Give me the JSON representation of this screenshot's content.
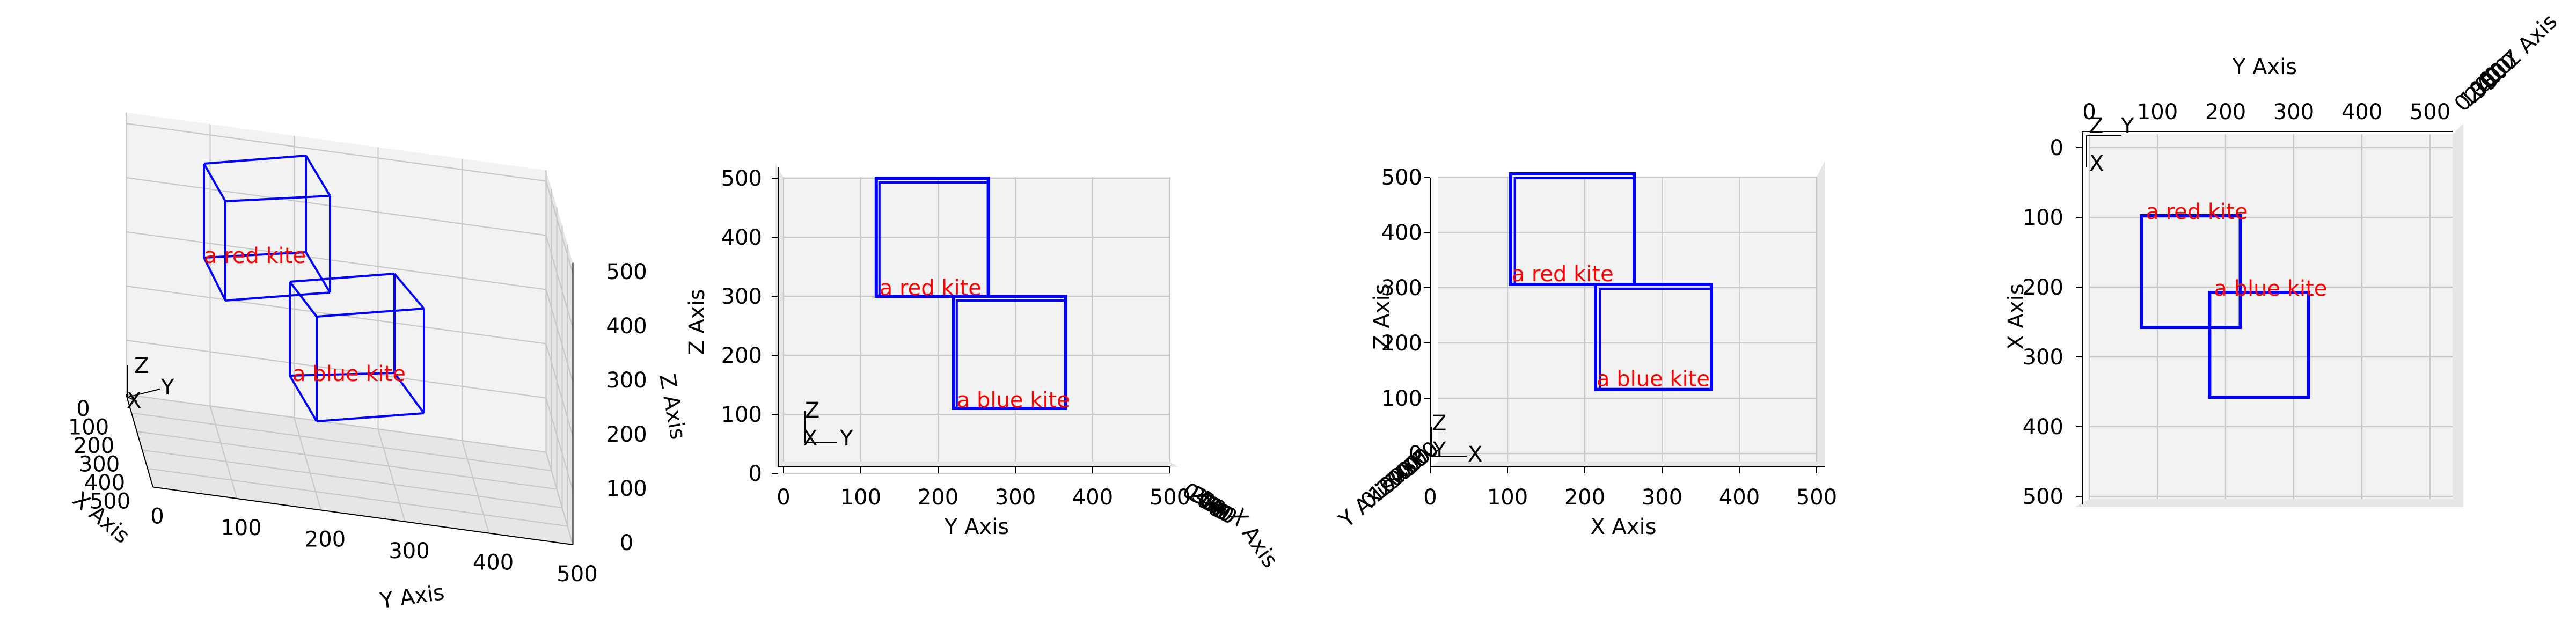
{
  "views": [
    {
      "id": "perspective",
      "x_label": "X Axis",
      "y_label": "Y Axis",
      "z_label": "Z Axis",
      "x_ticks": [
        "0",
        "100",
        "200",
        "300",
        "400",
        "500"
      ],
      "y_ticks": [
        "0",
        "100",
        "200",
        "300",
        "400",
        "500"
      ],
      "z_ticks": [
        "0",
        "100",
        "200",
        "300",
        "400",
        "500"
      ],
      "gizmo": {
        "x": "X",
        "y": "Y",
        "z": "Z"
      }
    },
    {
      "id": "front-yz",
      "x_label": "Y Axis",
      "y_label": "Z Axis",
      "depth_label": "X Axis",
      "x_ticks": [
        "0",
        "100",
        "200",
        "300",
        "400",
        "500"
      ],
      "y_ticks": [
        "0",
        "100",
        "200",
        "300",
        "400",
        "500"
      ],
      "depth_ticks": [
        "0",
        "100",
        "200",
        "300",
        "400",
        "500"
      ],
      "gizmo": {
        "x": "X",
        "y": "Y",
        "z": "Z"
      }
    },
    {
      "id": "side-xz",
      "x_label": "X Axis",
      "y_label": "Z Axis",
      "depth_label": "Y Axis",
      "x_ticks": [
        "0",
        "100",
        "200",
        "300",
        "400",
        "500"
      ],
      "y_ticks": [
        "0",
        "100",
        "200",
        "300",
        "400",
        "500"
      ],
      "depth_ticks": [
        "0",
        "100",
        "200",
        "300",
        "400",
        "500"
      ],
      "gizmo": {
        "x": "X",
        "y": "Y",
        "z": "Z"
      }
    },
    {
      "id": "top-xy",
      "x_label": "Y Axis",
      "y_label": "X Axis",
      "depth_label": "Z Axis",
      "x_ticks": [
        "0",
        "100",
        "200",
        "300",
        "400",
        "500"
      ],
      "y_ticks": [
        "0",
        "100",
        "200",
        "300",
        "400",
        "500"
      ],
      "depth_ticks": [
        "0",
        "100",
        "200",
        "300",
        "400",
        "500"
      ],
      "gizmo": {
        "x": "X",
        "y": "Y",
        "z": "Z"
      }
    }
  ],
  "objects": [
    {
      "label": "a red kite",
      "label_color": "#ff0000",
      "box_color": "#0000ff",
      "x": [
        90,
        250
      ],
      "y": [
        120,
        265
      ],
      "z": [
        300,
        500
      ]
    },
    {
      "label": "a blue kite",
      "label_color": "#ff0000",
      "box_color": "#0000ff",
      "x": [
        200,
        350
      ],
      "y": [
        220,
        365
      ],
      "z": [
        110,
        300
      ]
    }
  ],
  "colors": {
    "x_axis": "#ff0000",
    "y_axis": "#008000",
    "z_axis": "#0000ff",
    "box": "#0000ff",
    "label": "#ff0000"
  }
}
